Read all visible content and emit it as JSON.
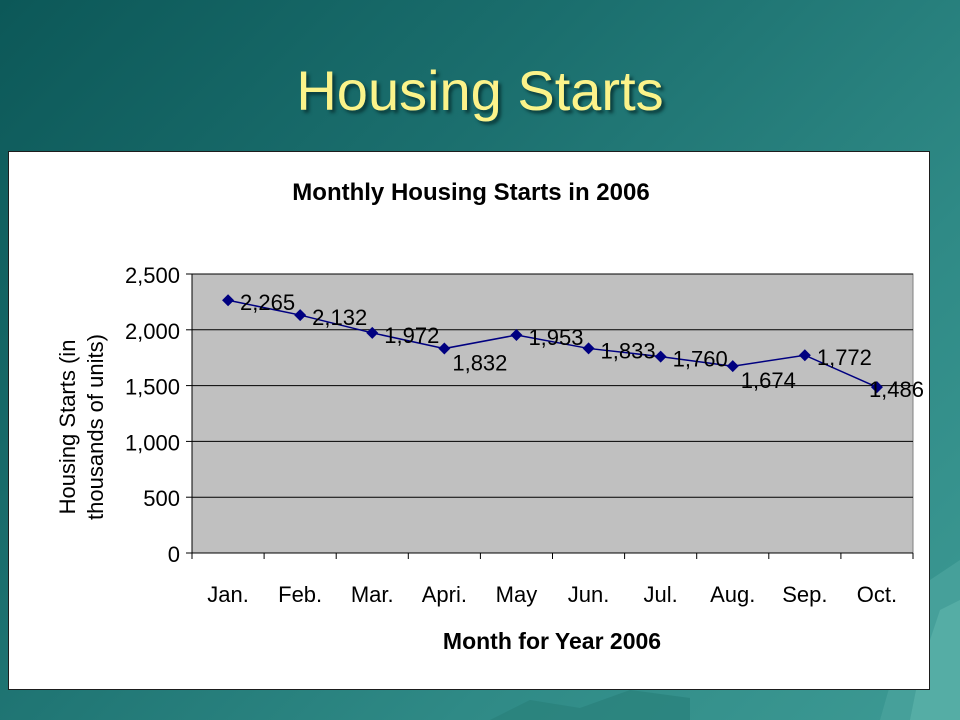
{
  "slide": {
    "title": "Housing Starts"
  },
  "colors": {
    "background": "#1b6f6e",
    "title_text": "#fbf38a",
    "plot_area": "#c0c0c0",
    "series_line": "#000080"
  },
  "chart_data": {
    "type": "line",
    "title": "Monthly Housing Starts in 2006",
    "xlabel": "Month for Year 2006",
    "ylabel": "Housing Starts (in thousands of units)",
    "ylabel_lines": [
      "Housing Starts (in",
      "thousands of units)"
    ],
    "categories": [
      "Jan.",
      "Feb.",
      "Mar.",
      "Apri.",
      "May",
      "Jun.",
      "Jul.",
      "Aug.",
      "Sep.",
      "Oct."
    ],
    "series": [
      {
        "values": [
          2265,
          2132,
          1972,
          1832,
          1953,
          1833,
          1760,
          1674,
          1772,
          1486
        ]
      }
    ],
    "data_labels": [
      "2,265",
      "2,132",
      "1,972",
      "1,832",
      "1,953",
      "1,833",
      "1,760",
      "1,674",
      "1,772",
      "1,486"
    ],
    "ylim": [
      0,
      2500
    ],
    "yticks": [
      0,
      500,
      1000,
      1500,
      2000,
      2500
    ],
    "ytick_labels": [
      "0",
      "500",
      "1,000",
      "1,500",
      "2,000",
      "2,500"
    ],
    "grid": "horizontal",
    "legend": "none",
    "marker": "diamond"
  }
}
